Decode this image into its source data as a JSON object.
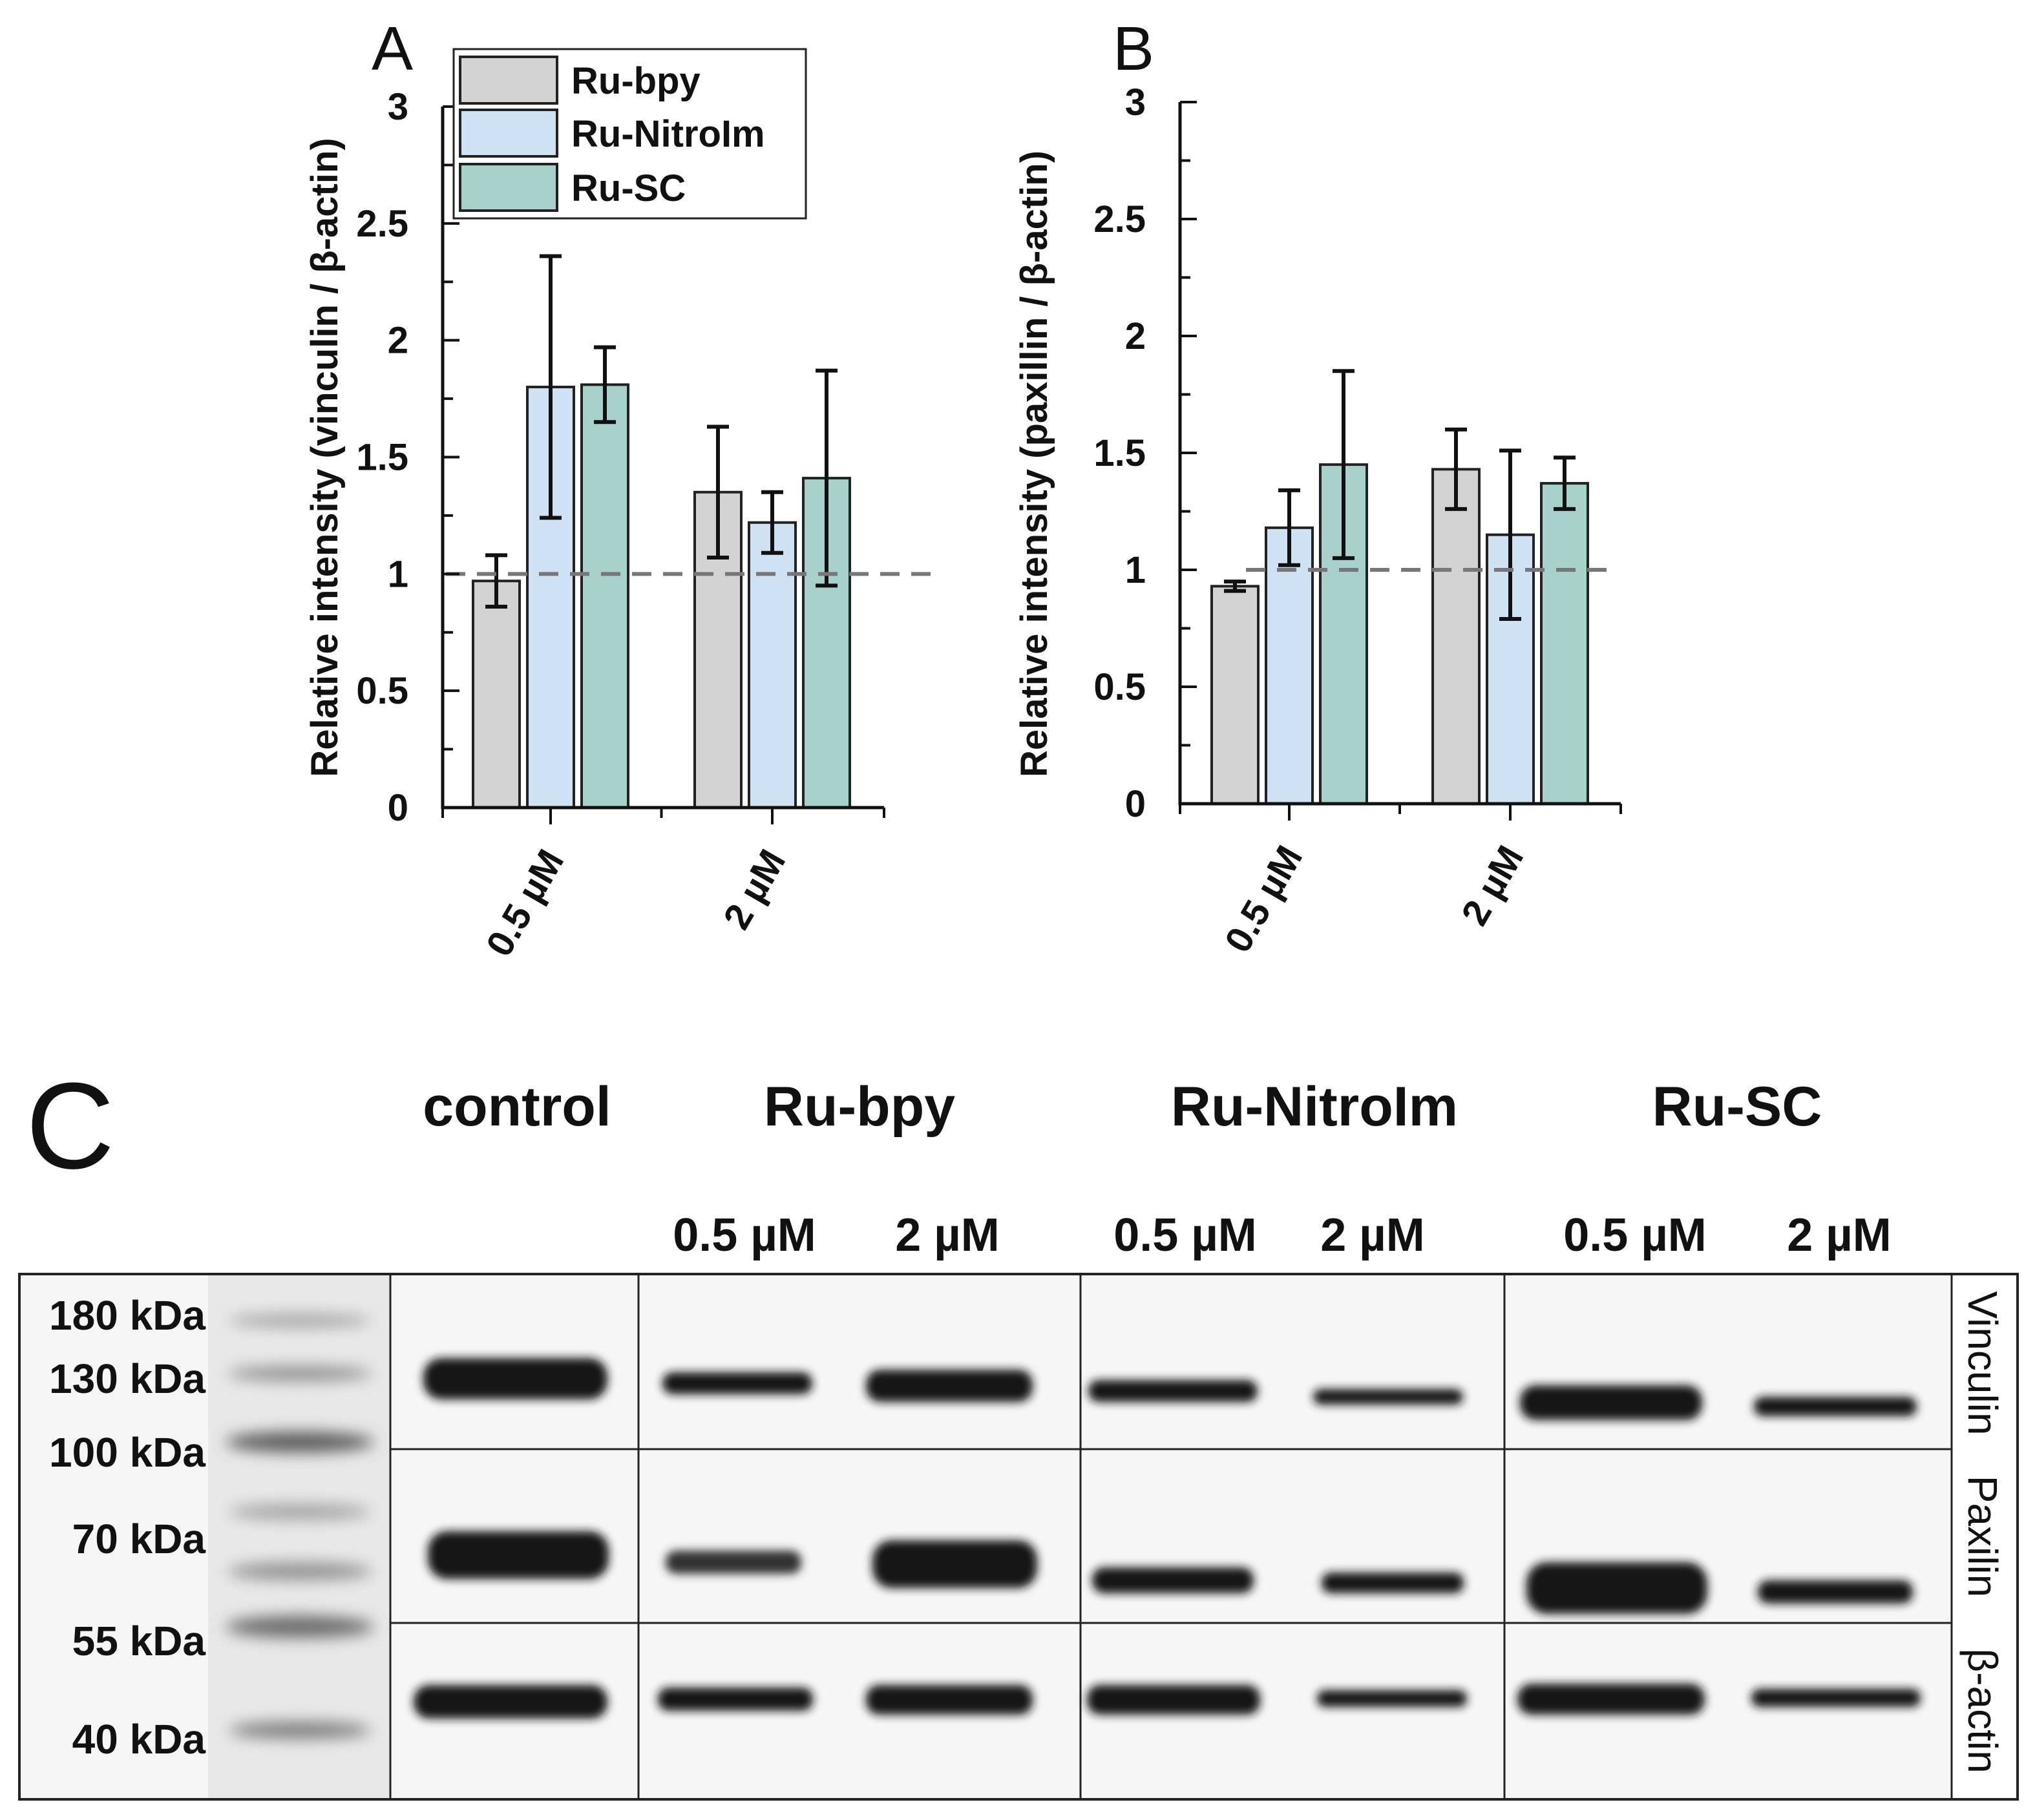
{
  "colors": {
    "Ru-bpy": "#d3d3d3",
    "Ru-NitroIm": "#cfe2f3",
    "Ru-SC": "#a9d1cb",
    "reference_line": "#777777"
  },
  "chart_data": [
    {
      "panel": "A",
      "type": "bar",
      "ylabel": "Relative intensity (vinculin / β-actin)",
      "ylim": [
        0,
        3
      ],
      "yticks": [
        "0",
        "0.5",
        "1",
        "1.5",
        "2",
        "2.5",
        "3"
      ],
      "categories": [
        "0.5 µM",
        "2 µM"
      ],
      "reference_line": 1,
      "legend": {
        "placement": "top-left"
      },
      "series": [
        {
          "name": "Ru-bpy",
          "values": [
            0.97,
            1.35
          ],
          "errors": [
            0.11,
            0.28
          ]
        },
        {
          "name": "Ru-NitroIm",
          "values": [
            1.8,
            1.22
          ],
          "errors": [
            0.56,
            0.13
          ]
        },
        {
          "name": "Ru-SC",
          "values": [
            1.81,
            1.41
          ],
          "errors": [
            0.16,
            0.46
          ]
        }
      ]
    },
    {
      "panel": "B",
      "type": "bar",
      "ylabel": "Relative intensity (paxillin / β-actin)",
      "ylim": [
        0,
        3
      ],
      "yticks": [
        "0",
        "0.5",
        "1",
        "1.5",
        "2",
        "2.5",
        "3"
      ],
      "categories": [
        "0.5 µM",
        "2 µM"
      ],
      "reference_line": 1,
      "series": [
        {
          "name": "Ru-bpy",
          "values": [
            0.93,
            1.43
          ],
          "errors": [
            0.02,
            0.17
          ]
        },
        {
          "name": "Ru-NitroIm",
          "values": [
            1.18,
            1.15
          ],
          "errors": [
            0.16,
            0.36
          ]
        },
        {
          "name": "Ru-SC",
          "values": [
            1.45,
            1.37
          ],
          "errors": [
            0.4,
            0.11
          ]
        }
      ]
    }
  ],
  "blot": {
    "panel": "C",
    "groups": [
      "control",
      "Ru-bpy",
      "Ru-NitroIm",
      "Ru-SC"
    ],
    "concentrations": [
      "0.5 µM",
      "2 µM",
      "0.5 µM",
      "2 µM",
      "0.5 µM",
      "2 µM"
    ],
    "markers": [
      "180 kDa",
      "130 kDa",
      "100 kDa",
      "70 kDa",
      "55 kDa",
      "40 kDa"
    ],
    "proteins": [
      "Vinculin",
      "Paxilin",
      "β-actin"
    ]
  }
}
